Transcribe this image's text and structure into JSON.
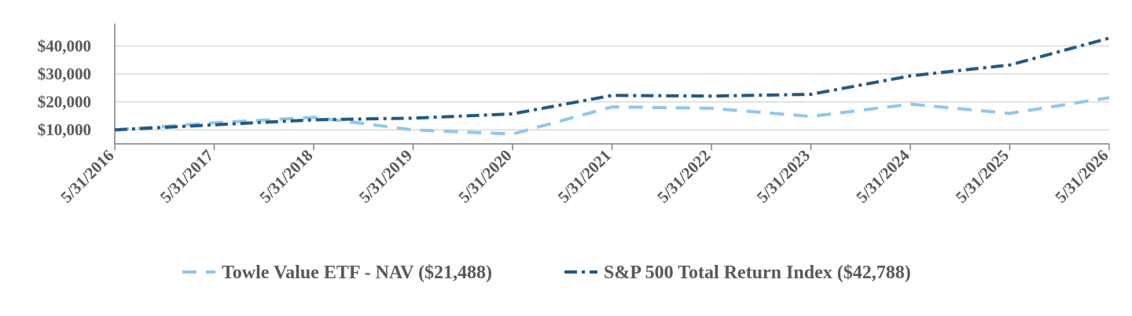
{
  "chart_data": {
    "type": "line",
    "x": [
      "5/31/2016",
      "5/31/2017",
      "5/31/2018",
      "5/31/2019",
      "5/31/2020",
      "5/31/2021",
      "5/31/2022",
      "5/31/2023",
      "5/31/2024",
      "5/31/2025",
      "5/31/2026"
    ],
    "series": [
      {
        "name": "Towle Value ETF  - NAV ($21,488)",
        "values": [
          10000,
          12500,
          14500,
          10000,
          8500,
          18200,
          17700,
          14800,
          19200,
          15900,
          21488
        ],
        "color": "#8cc8f0",
        "dash": "dashed"
      },
      {
        "name": "S&P 500 Total Return Index ($42,788)",
        "values": [
          10000,
          11800,
          13600,
          14200,
          15700,
          22300,
          22100,
          22700,
          29300,
          33200,
          42788
        ],
        "color": "#1f5a85",
        "dash": "dashdot"
      }
    ],
    "yticks": [
      10000,
      20000,
      30000,
      40000
    ],
    "ytick_labels": [
      "$10,000",
      "$20,000",
      "$30,000",
      "$40,000"
    ],
    "ylim": [
      5000,
      48000
    ],
    "grid": true,
    "legend": "bottom",
    "title": "",
    "xlabel": "",
    "ylabel": ""
  }
}
